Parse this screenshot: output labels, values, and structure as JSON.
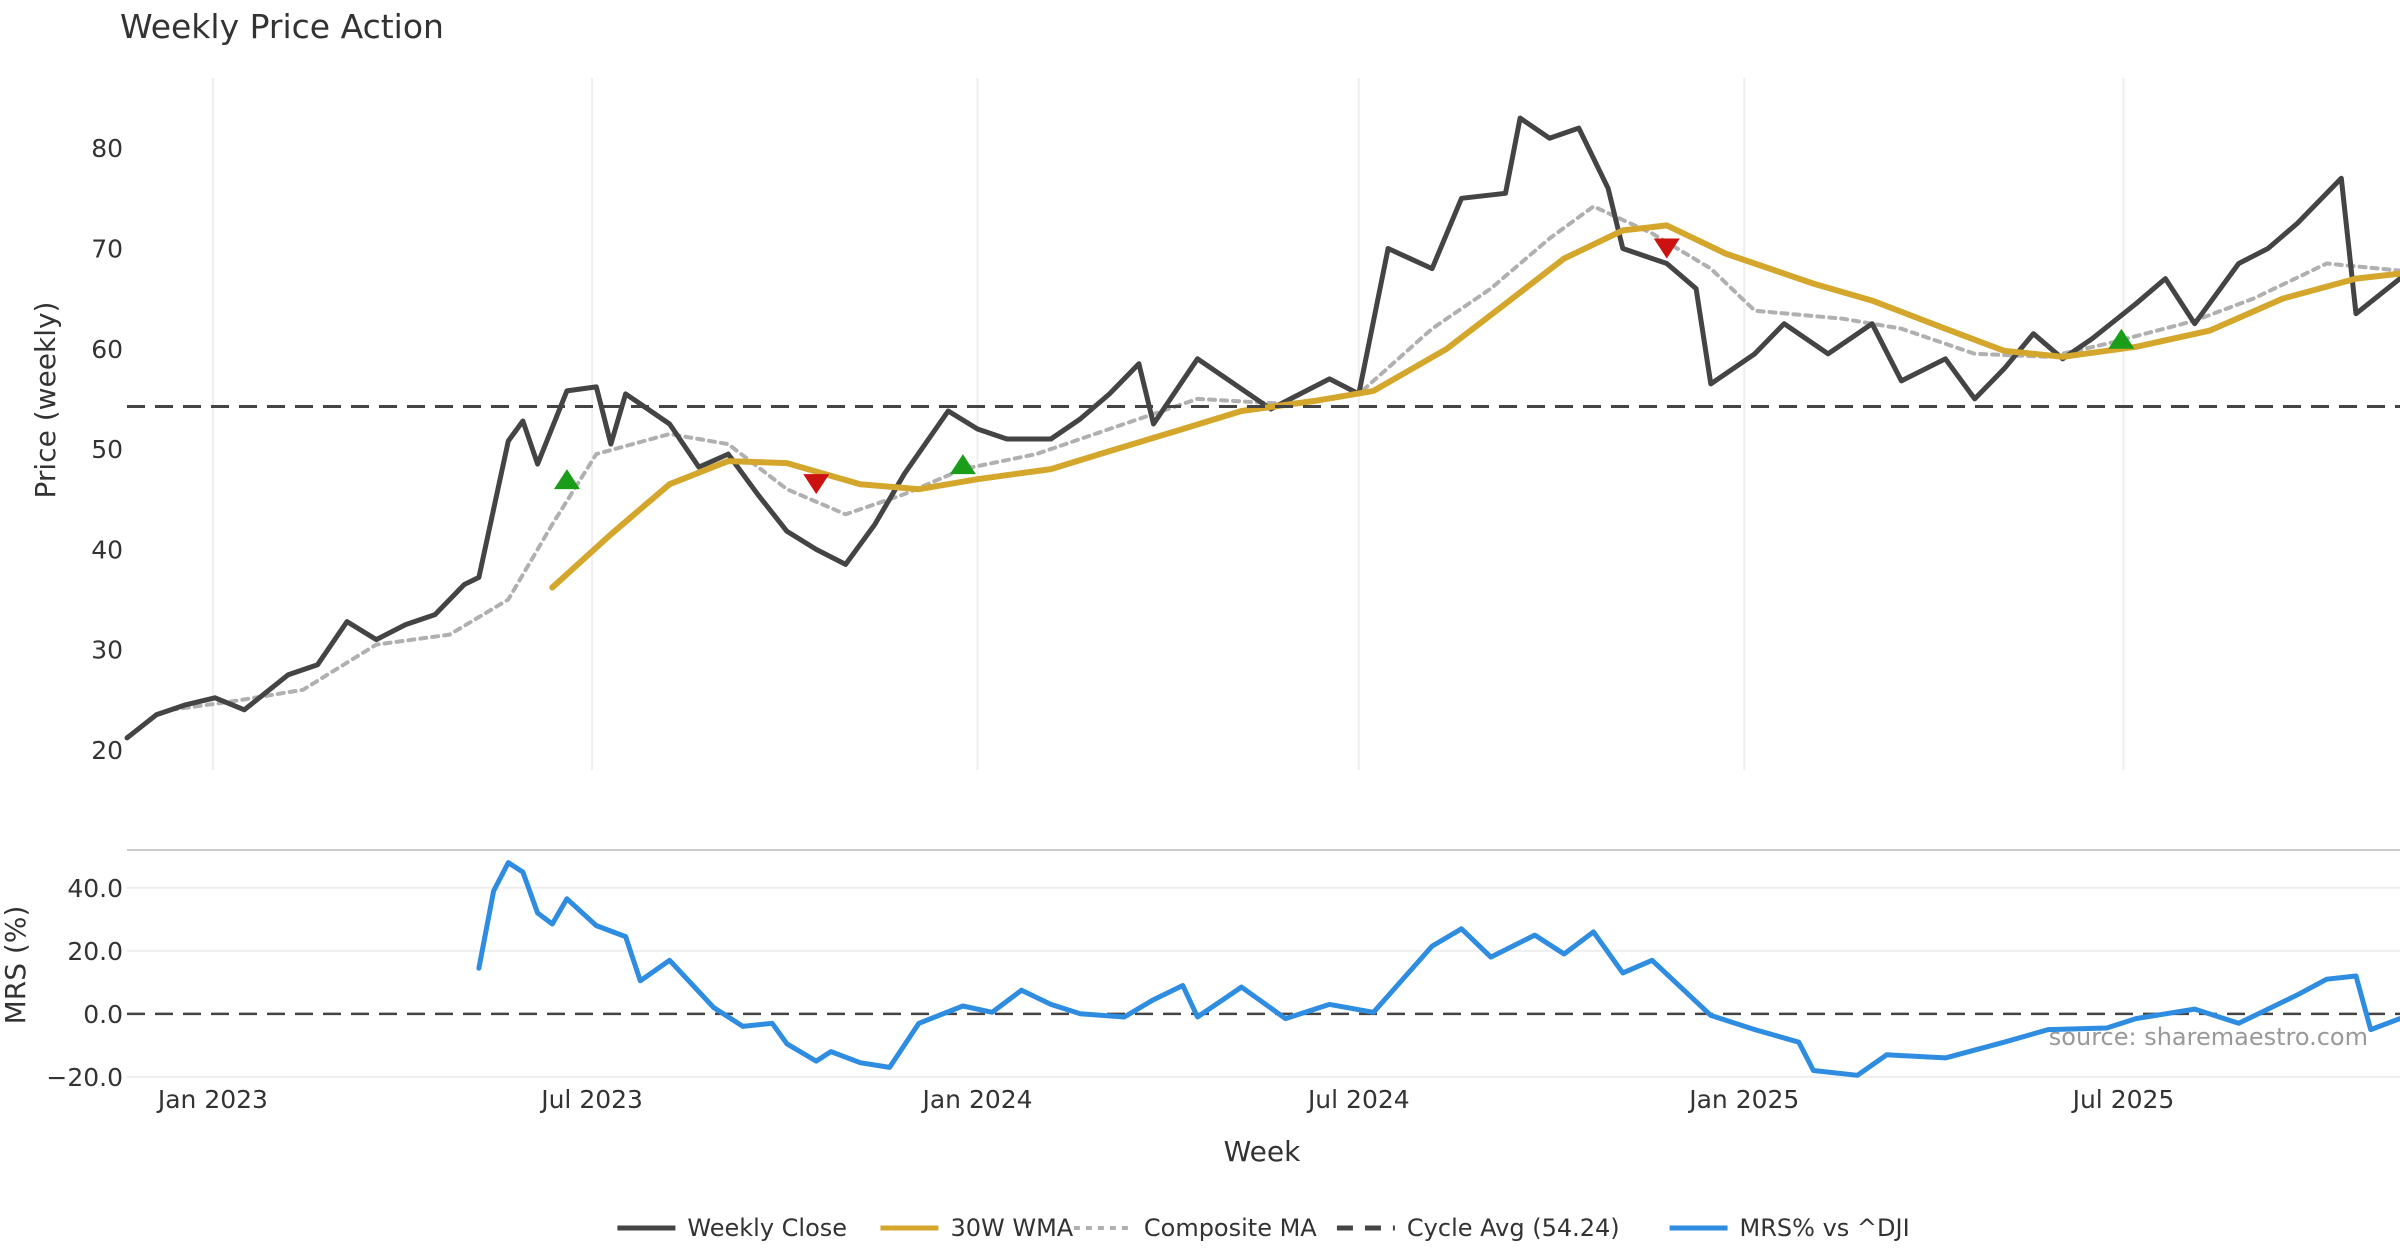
{
  "chart_data": [
    {
      "type": "line",
      "title": "Weekly Price Action",
      "ylabel": "Price (weekly)",
      "xlabel": "",
      "ylim": [
        18,
        87
      ],
      "yticks": [
        20,
        30,
        40,
        50,
        60,
        70,
        80
      ],
      "x_range": [
        "2022-11-21",
        "2025-11-10"
      ],
      "grid": "vertical",
      "series": [
        {
          "name": "Weekly Close",
          "color": "#444444",
          "dash": "solid",
          "points": [
            [
              "2022-11-21",
              21.2
            ],
            [
              "2022-12-05",
              23.5
            ],
            [
              "2022-12-19",
              24.5
            ],
            [
              "2023-01-02",
              25.2
            ],
            [
              "2023-01-16",
              24.0
            ],
            [
              "2023-02-06",
              27.5
            ],
            [
              "2023-02-20",
              28.5
            ],
            [
              "2023-03-06",
              32.8
            ],
            [
              "2023-03-20",
              31.0
            ],
            [
              "2023-04-03",
              32.5
            ],
            [
              "2023-04-17",
              33.5
            ],
            [
              "2023-05-01",
              36.5
            ],
            [
              "2023-05-08",
              37.2
            ],
            [
              "2023-05-22",
              50.8
            ],
            [
              "2023-05-29",
              52.8
            ],
            [
              "2023-06-05",
              48.5
            ],
            [
              "2023-06-19",
              55.8
            ],
            [
              "2023-07-03",
              56.2
            ],
            [
              "2023-07-10",
              50.5
            ],
            [
              "2023-07-17",
              55.5
            ],
            [
              "2023-08-07",
              52.5
            ],
            [
              "2023-08-21",
              48.2
            ],
            [
              "2023-09-04",
              49.5
            ],
            [
              "2023-09-18",
              45.5
            ],
            [
              "2023-10-02",
              41.8
            ],
            [
              "2023-10-16",
              40.0
            ],
            [
              "2023-10-30",
              38.5
            ],
            [
              "2023-11-13",
              42.5
            ],
            [
              "2023-11-27",
              47.5
            ],
            [
              "2023-12-18",
              53.8
            ],
            [
              "2024-01-01",
              52.0
            ],
            [
              "2024-01-15",
              51.0
            ],
            [
              "2024-02-05",
              51.0
            ],
            [
              "2024-02-19",
              53.0
            ],
            [
              "2024-03-04",
              55.5
            ],
            [
              "2024-03-18",
              58.5
            ],
            [
              "2024-03-25",
              52.5
            ],
            [
              "2024-04-15",
              59.0
            ],
            [
              "2024-05-06",
              56.0
            ],
            [
              "2024-05-20",
              54.0
            ],
            [
              "2024-06-03",
              55.5
            ],
            [
              "2024-06-17",
              57.0
            ],
            [
              "2024-07-01",
              55.5
            ],
            [
              "2024-07-15",
              70.0
            ],
            [
              "2024-08-05",
              68.0
            ],
            [
              "2024-08-19",
              75.0
            ],
            [
              "2024-09-09",
              75.5
            ],
            [
              "2024-09-16",
              83.0
            ],
            [
              "2024-09-30",
              81.0
            ],
            [
              "2024-10-14",
              82.0
            ],
            [
              "2024-10-28",
              76.0
            ],
            [
              "2024-11-04",
              70.0
            ],
            [
              "2024-11-25",
              68.5
            ],
            [
              "2024-12-09",
              66.0
            ],
            [
              "2024-12-16",
              56.5
            ],
            [
              "2025-01-06",
              59.5
            ],
            [
              "2025-01-20",
              62.5
            ],
            [
              "2025-02-10",
              59.5
            ],
            [
              "2025-03-03",
              62.5
            ],
            [
              "2025-03-17",
              56.8
            ],
            [
              "2025-04-07",
              59.0
            ],
            [
              "2025-04-21",
              55.0
            ],
            [
              "2025-05-05",
              58.0
            ],
            [
              "2025-05-19",
              61.5
            ],
            [
              "2025-06-02",
              59.0
            ],
            [
              "2025-06-16",
              61.0
            ],
            [
              "2025-07-07",
              64.5
            ],
            [
              "2025-07-21",
              67.0
            ],
            [
              "2025-08-04",
              62.5
            ],
            [
              "2025-08-25",
              68.5
            ],
            [
              "2025-09-08",
              70.0
            ],
            [
              "2025-09-22",
              72.5
            ],
            [
              "2025-10-13",
              77.0
            ],
            [
              "2025-10-20",
              63.5
            ],
            [
              "2025-11-10",
              67.0
            ]
          ]
        },
        {
          "name": "30W WMA",
          "color": "#d4a72c",
          "dash": "solid",
          "points": [
            [
              "2023-06-12",
              36.2
            ],
            [
              "2023-07-10",
              41.5
            ],
            [
              "2023-08-07",
              46.5
            ],
            [
              "2023-09-04",
              48.8
            ],
            [
              "2023-10-02",
              48.6
            ],
            [
              "2023-11-06",
              46.5
            ],
            [
              "2023-12-04",
              46.0
            ],
            [
              "2024-01-01",
              47.0
            ],
            [
              "2024-02-05",
              48.0
            ],
            [
              "2024-03-04",
              49.8
            ],
            [
              "2024-04-08",
              52.0
            ],
            [
              "2024-05-06",
              53.8
            ],
            [
              "2024-06-10",
              54.8
            ],
            [
              "2024-07-08",
              55.8
            ],
            [
              "2024-08-12",
              60.0
            ],
            [
              "2024-09-09",
              64.5
            ],
            [
              "2024-10-07",
              69.0
            ],
            [
              "2024-11-04",
              71.8
            ],
            [
              "2024-11-25",
              72.3
            ],
            [
              "2024-12-23",
              69.5
            ],
            [
              "2025-02-03",
              66.5
            ],
            [
              "2025-03-03",
              64.8
            ],
            [
              "2025-04-07",
              62.0
            ],
            [
              "2025-05-05",
              59.8
            ],
            [
              "2025-06-02",
              59.2
            ],
            [
              "2025-07-07",
              60.2
            ],
            [
              "2025-08-11",
              61.8
            ],
            [
              "2025-09-15",
              65.0
            ],
            [
              "2025-10-20",
              67.0
            ],
            [
              "2025-11-10",
              67.5
            ]
          ]
        },
        {
          "name": "Composite MA",
          "color": "#b0b0b0",
          "dash": "dotted",
          "points": [
            [
              "2022-12-12",
              24.0
            ],
            [
              "2023-01-09",
              24.8
            ],
            [
              "2023-02-13",
              26.0
            ],
            [
              "2023-03-20",
              30.5
            ],
            [
              "2023-04-24",
              31.5
            ],
            [
              "2023-05-22",
              35.0
            ],
            [
              "2023-06-12",
              42.5
            ],
            [
              "2023-07-03",
              49.5
            ],
            [
              "2023-08-07",
              51.5
            ],
            [
              "2023-09-04",
              50.5
            ],
            [
              "2023-10-02",
              46.0
            ],
            [
              "2023-10-30",
              43.5
            ],
            [
              "2023-11-27",
              45.5
            ],
            [
              "2023-12-25",
              48.0
            ],
            [
              "2024-01-29",
              49.5
            ],
            [
              "2024-03-04",
              52.0
            ],
            [
              "2024-04-15",
              55.0
            ],
            [
              "2024-05-27",
              54.5
            ],
            [
              "2024-07-01",
              55.5
            ],
            [
              "2024-08-05",
              62.0
            ],
            [
              "2024-09-02",
              66.0
            ],
            [
              "2024-09-30",
              71.0
            ],
            [
              "2024-10-21",
              74.2
            ],
            [
              "2024-11-18",
              71.5
            ],
            [
              "2024-12-16",
              68.0
            ],
            [
              "2025-01-06",
              63.8
            ],
            [
              "2025-02-17",
              63.0
            ],
            [
              "2025-03-17",
              62.0
            ],
            [
              "2025-04-21",
              59.5
            ],
            [
              "2025-05-26",
              59.2
            ],
            [
              "2025-06-23",
              60.5
            ],
            [
              "2025-08-04",
              62.8
            ],
            [
              "2025-09-01",
              65.0
            ],
            [
              "2025-10-06",
              68.5
            ],
            [
              "2025-11-10",
              67.8
            ]
          ]
        },
        {
          "name": "Cycle Avg (54.24)",
          "color": "#444444",
          "dash": "dashed",
          "value": 54.24
        }
      ],
      "markers": [
        {
          "kind": "buy",
          "x": "2023-06-19",
          "y": 47.0,
          "color": "#1a9e1a"
        },
        {
          "kind": "sell",
          "x": "2023-10-16",
          "y": 46.5,
          "color": "#cc1111"
        },
        {
          "kind": "buy",
          "x": "2023-12-25",
          "y": 48.5,
          "color": "#1a9e1a"
        },
        {
          "kind": "sell",
          "x": "2024-11-25",
          "y": 70.0,
          "color": "#cc1111"
        },
        {
          "kind": "buy",
          "x": "2025-06-30",
          "y": 61.0,
          "color": "#1a9e1a"
        }
      ]
    },
    {
      "type": "line",
      "title": "",
      "ylabel": "MRS (%)",
      "xlabel": "Week",
      "ylim": [
        -21,
        52
      ],
      "yticks": [
        "40.0",
        "20.0",
        "0.0",
        "−20.0"
      ],
      "ytick_values": [
        40,
        20,
        0,
        -20
      ],
      "xticks": [
        "Jan 2023",
        "Jul 2023",
        "Jan 2024",
        "Jul 2024",
        "Jan 2025",
        "Jul 2025"
      ],
      "xtick_dates": [
        "2023-01-01",
        "2023-07-01",
        "2024-01-01",
        "2024-07-01",
        "2025-01-01",
        "2025-07-01"
      ],
      "grid": "horizontal",
      "annotation": "source: sharemaestro.com",
      "series": [
        {
          "name": "MRS% vs ^DJI",
          "color": "#2e8de0",
          "dash": "solid",
          "points": [
            [
              "2023-05-08",
              14.5
            ],
            [
              "2023-05-15",
              39.0
            ],
            [
              "2023-05-22",
              48.0
            ],
            [
              "2023-05-29",
              45.0
            ],
            [
              "2023-06-05",
              32.0
            ],
            [
              "2023-06-12",
              28.5
            ],
            [
              "2023-06-19",
              36.5
            ],
            [
              "2023-07-03",
              28.0
            ],
            [
              "2023-07-17",
              24.5
            ],
            [
              "2023-07-24",
              10.5
            ],
            [
              "2023-08-07",
              17.0
            ],
            [
              "2023-08-28",
              2.0
            ],
            [
              "2023-09-11",
              -4.0
            ],
            [
              "2023-09-25",
              -3.0
            ],
            [
              "2023-10-02",
              -9.5
            ],
            [
              "2023-10-16",
              -15.0
            ],
            [
              "2023-10-23",
              -12.0
            ],
            [
              "2023-11-06",
              -15.5
            ],
            [
              "2023-11-20",
              -17.0
            ],
            [
              "2023-12-04",
              -3.0
            ],
            [
              "2023-12-25",
              2.5
            ],
            [
              "2024-01-08",
              0.5
            ],
            [
              "2024-01-22",
              7.5
            ],
            [
              "2024-02-05",
              3.0
            ],
            [
              "2024-02-19",
              0.0
            ],
            [
              "2024-03-11",
              -1.0
            ],
            [
              "2024-03-25",
              4.5
            ],
            [
              "2024-04-08",
              9.0
            ],
            [
              "2024-04-15",
              -1.0
            ],
            [
              "2024-05-06",
              8.5
            ],
            [
              "2024-05-27",
              -1.5
            ],
            [
              "2024-06-17",
              3.0
            ],
            [
              "2024-07-08",
              0.5
            ],
            [
              "2024-08-05",
              21.5
            ],
            [
              "2024-08-19",
              27.0
            ],
            [
              "2024-09-02",
              18.0
            ],
            [
              "2024-09-23",
              25.0
            ],
            [
              "2024-10-07",
              19.0
            ],
            [
              "2024-10-21",
              26.0
            ],
            [
              "2024-11-04",
              13.0
            ],
            [
              "2024-11-18",
              17.0
            ],
            [
              "2024-12-16",
              -0.5
            ],
            [
              "2025-01-06",
              -5.0
            ],
            [
              "2025-01-27",
              -9.0
            ],
            [
              "2025-02-03",
              -18.0
            ],
            [
              "2025-02-24",
              -19.5
            ],
            [
              "2025-03-10",
              -13.0
            ],
            [
              "2025-04-07",
              -14.0
            ],
            [
              "2025-05-05",
              -9.0
            ],
            [
              "2025-05-26",
              -5.0
            ],
            [
              "2025-06-23",
              -4.5
            ],
            [
              "2025-07-07",
              -1.5
            ],
            [
              "2025-08-04",
              1.5
            ],
            [
              "2025-08-25",
              -3.0
            ],
            [
              "2025-09-08",
              1.5
            ],
            [
              "2025-09-22",
              6.0
            ],
            [
              "2025-10-06",
              11.0
            ],
            [
              "2025-10-20",
              12.0
            ],
            [
              "2025-10-27",
              -5.0
            ],
            [
              "2025-11-10",
              -1.5
            ]
          ]
        },
        {
          "name": "",
          "color": "#444444",
          "dash": "dashed",
          "value": 0
        }
      ]
    }
  ],
  "legend": {
    "placement": "bottom-center",
    "items": [
      {
        "label": "Weekly Close",
        "color": "#444444",
        "dash": "solid"
      },
      {
        "label": "30W WMA",
        "color": "#d4a72c",
        "dash": "solid"
      },
      {
        "label": "Composite MA",
        "color": "#b0b0b0",
        "dash": "dotted"
      },
      {
        "label": "Cycle Avg (54.24)",
        "color": "#444444",
        "dash": "dashed"
      },
      {
        "label": "MRS% vs ^DJI",
        "color": "#2e8de0",
        "dash": "solid"
      }
    ]
  }
}
